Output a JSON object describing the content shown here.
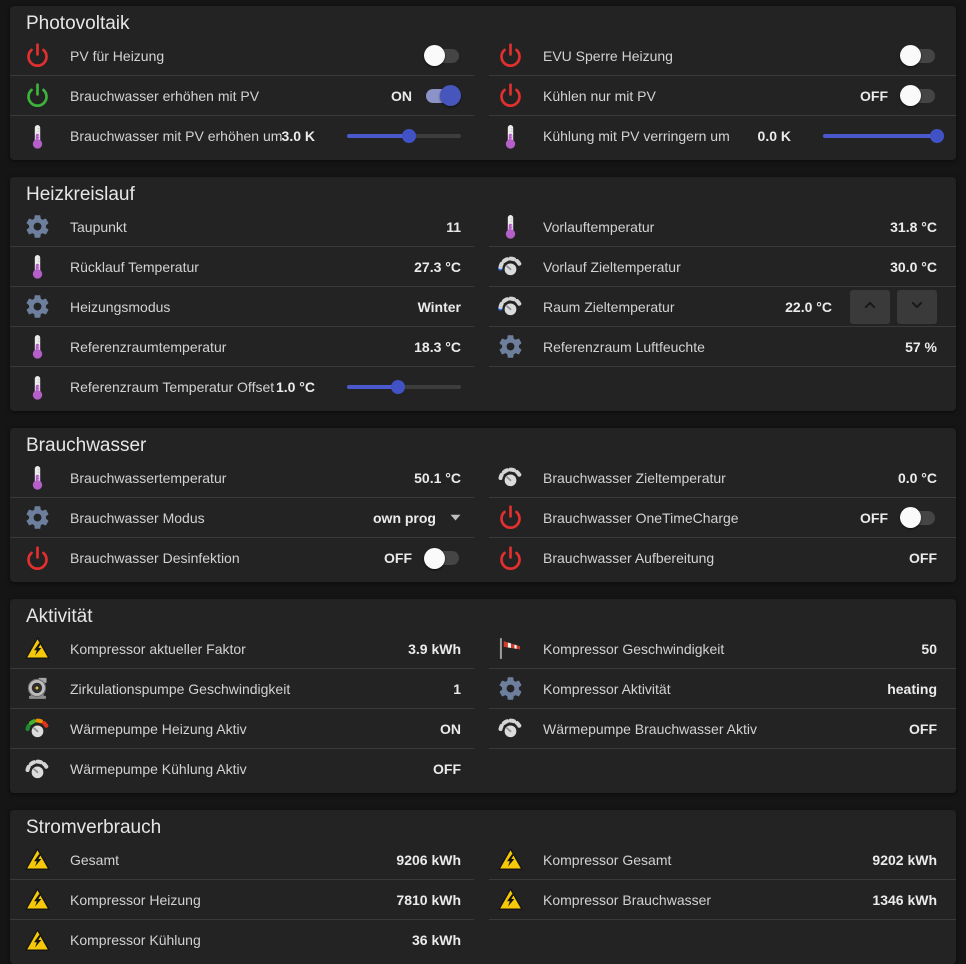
{
  "colors": {
    "page_bg": "#151515",
    "card_bg": "#232323",
    "divider": "#3a3a3a",
    "toggle_on_track": "#8b93c9",
    "toggle_on_knob": "#4656bd",
    "toggle_off_track": "#454545",
    "toggle_off_knob": "#fafafa",
    "slider_active": "#4a5ace",
    "slider_inactive": "#3d3d3d",
    "slider_knob": "#4152c4",
    "power_red": "#e22f2f",
    "power_green": "#3cb43c",
    "gear_grey_blue": "#6e7f9d",
    "thermometer_purple": "#b55fc9",
    "warning_yellow": "#f6c80a"
  },
  "sections": [
    {
      "title": "Photovoltaik",
      "left": [
        {
          "icon": "power-red",
          "label": "PV für Heizung",
          "control": {
            "type": "toggle",
            "state": "off"
          }
        },
        {
          "icon": "power-green",
          "label": "Brauchwasser erhöhen mit PV",
          "control": {
            "type": "toggle",
            "state": "on",
            "state_label": "ON"
          }
        },
        {
          "icon": "thermometer",
          "label": "Brauchwasser mit PV erhöhen um",
          "control": {
            "type": "slider",
            "value": "3.0 K",
            "percent": 54
          }
        }
      ],
      "right": [
        {
          "icon": "power-red",
          "label": "EVU Sperre Heizung",
          "control": {
            "type": "toggle",
            "state": "off"
          }
        },
        {
          "icon": "power-red",
          "label": "Kühlen nur mit PV",
          "control": {
            "type": "toggle",
            "state": "off",
            "state_label": "OFF"
          }
        },
        {
          "icon": "thermometer",
          "label": "Kühlung mit PV verringern um",
          "control": {
            "type": "slider",
            "value": "0.0 K",
            "percent": 100
          }
        }
      ]
    },
    {
      "title": "Heizkreislauf",
      "left": [
        {
          "icon": "gear",
          "label": "Taupunkt",
          "control": {
            "type": "value",
            "value": "11"
          }
        },
        {
          "icon": "thermometer",
          "label": "Rücklauf Temperatur",
          "control": {
            "type": "value",
            "value": "27.3 °C"
          }
        },
        {
          "icon": "gear",
          "label": "Heizungsmodus",
          "control": {
            "type": "value",
            "value": "Winter"
          }
        },
        {
          "icon": "thermometer",
          "label": "Referenzraumtemperatur",
          "control": {
            "type": "value",
            "value": "18.3 °C"
          }
        },
        {
          "icon": "thermometer",
          "label": "Referenzraum Temperatur Offset",
          "control": {
            "type": "slider",
            "value": "1.0 °C",
            "percent": 45
          }
        }
      ],
      "right": [
        {
          "icon": "thermometer",
          "label": "Vorlauftemperatur",
          "control": {
            "type": "value",
            "value": "31.8 °C"
          }
        },
        {
          "icon": "gauge-blue",
          "label": "Vorlauf Zieltemperatur",
          "control": {
            "type": "value",
            "value": "30.0 °C"
          }
        },
        {
          "icon": "gauge-blue",
          "label": "Raum Zieltemperatur",
          "control": {
            "type": "stepper",
            "value": "22.0 °C"
          }
        },
        {
          "icon": "gear",
          "label": "Referenzraum Luftfeuchte",
          "control": {
            "type": "value",
            "value": "57 %"
          }
        }
      ]
    },
    {
      "title": "Brauchwasser",
      "left": [
        {
          "icon": "thermometer",
          "label": "Brauchwassertemperatur",
          "control": {
            "type": "value",
            "value": "50.1 °C"
          }
        },
        {
          "icon": "gear",
          "label": "Brauchwasser Modus",
          "control": {
            "type": "select",
            "value": "own prog"
          }
        },
        {
          "icon": "power-red",
          "label": "Brauchwasser Desinfektion",
          "control": {
            "type": "toggle",
            "state": "off",
            "state_label": "OFF"
          }
        }
      ],
      "right": [
        {
          "icon": "gauge-grey",
          "label": "Brauchwasser Zieltemperatur",
          "control": {
            "type": "value",
            "value": "0.0 °C"
          }
        },
        {
          "icon": "power-red",
          "label": "Brauchwasser OneTimeCharge",
          "control": {
            "type": "toggle",
            "state": "off",
            "state_label": "OFF"
          }
        },
        {
          "icon": "power-red",
          "label": "Brauchwasser Aufbereitung",
          "control": {
            "type": "value",
            "value": "OFF"
          }
        }
      ]
    },
    {
      "title": "Aktivität",
      "left": [
        {
          "icon": "warning",
          "label": "Kompressor aktueller Faktor",
          "control": {
            "type": "value",
            "value": "3.9 kWh"
          }
        },
        {
          "icon": "pump",
          "label": "Zirkulationspumpe Geschwindigkeit",
          "control": {
            "type": "value",
            "value": "1"
          }
        },
        {
          "icon": "gauge-color",
          "label": "Wärmepumpe Heizung Aktiv",
          "control": {
            "type": "value",
            "value": "ON"
          }
        },
        {
          "icon": "gauge-grey",
          "label": "Wärmepumpe Kühlung Aktiv",
          "control": {
            "type": "value",
            "value": "OFF"
          }
        }
      ],
      "right": [
        {
          "icon": "windsock",
          "label": "Kompressor Geschwindigkeit",
          "control": {
            "type": "value",
            "value": "50"
          }
        },
        {
          "icon": "gear",
          "label": "Kompressor Aktivität",
          "control": {
            "type": "value",
            "value": "heating"
          }
        },
        {
          "icon": "gauge-grey",
          "label": "Wärmepumpe Brauchwasser Aktiv",
          "control": {
            "type": "value",
            "value": "OFF"
          }
        }
      ]
    },
    {
      "title": "Stromverbrauch",
      "left": [
        {
          "icon": "warning",
          "label": "Gesamt",
          "control": {
            "type": "value",
            "value": "9206 kWh"
          }
        },
        {
          "icon": "warning",
          "label": "Kompressor Heizung",
          "control": {
            "type": "value",
            "value": "7810 kWh"
          }
        },
        {
          "icon": "warning",
          "label": "Kompressor Kühlung",
          "control": {
            "type": "value",
            "value": "36 kWh"
          }
        }
      ],
      "right": [
        {
          "icon": "warning",
          "label": "Kompressor Gesamt",
          "control": {
            "type": "value",
            "value": "9202 kWh"
          }
        },
        {
          "icon": "warning",
          "label": "Kompressor Brauchwasser",
          "control": {
            "type": "value",
            "value": "1346 kWh"
          }
        }
      ]
    }
  ]
}
